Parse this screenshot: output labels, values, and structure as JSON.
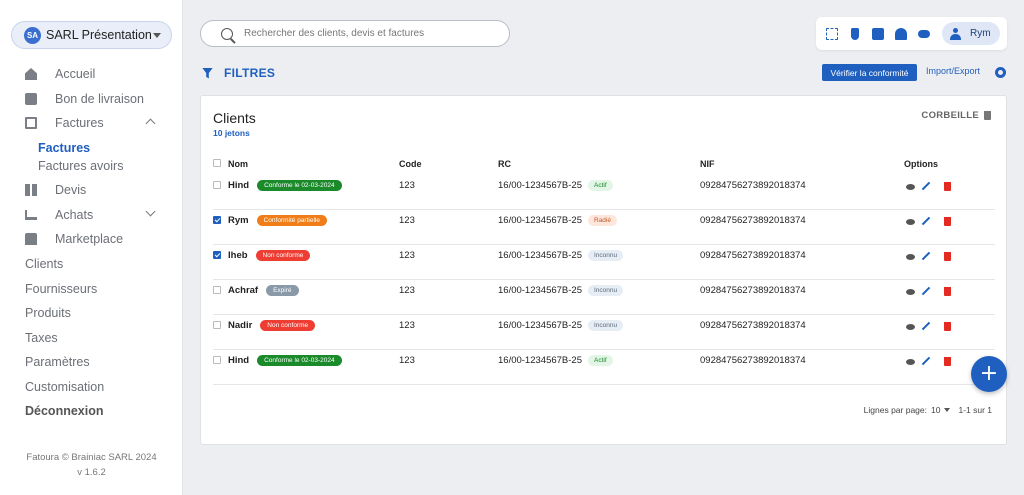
{
  "sidebar": {
    "company_initials": "SA",
    "company_name": "SARL Présentation",
    "items": [
      {
        "label": "Accueil",
        "icon": "home-icon"
      },
      {
        "label": "Bon de livraison",
        "icon": "delivery-icon"
      },
      {
        "label": "Factures",
        "icon": "invoice-icon",
        "expanded": true
      },
      {
        "label": "Devis",
        "icon": "quote-icon"
      },
      {
        "label": "Achats",
        "icon": "cart-icon",
        "expanded": false
      },
      {
        "label": "Marketplace",
        "icon": "store-icon"
      }
    ],
    "factures_sub": [
      "Factures",
      "Factures avoirs"
    ],
    "links": [
      "Clients",
      "Fournisseurs",
      "Produits",
      "Taxes",
      "Paramètres",
      "Customisation"
    ],
    "logout": "Déconnexion",
    "footer_line1": "Fatoura © Brainiac SARL 2024",
    "footer_line2": "v 1.6.2"
  },
  "search": {
    "placeholder": "Rechercher des clients, devis et factures",
    "value": ""
  },
  "topbar": {
    "icons": [
      "fullscreen-icon",
      "plug-icon",
      "calculator-icon",
      "bell-icon",
      "cloud-icon"
    ],
    "user_name": "Rym"
  },
  "toolbar": {
    "filters_label": "FILTRES",
    "verify_label": "Vérifier la conformité",
    "import_label": "Import/Export"
  },
  "card": {
    "title": "Clients",
    "count": "10 jetons",
    "trash_label": "CORBEILLE"
  },
  "table": {
    "headers": {
      "name": "Nom",
      "code": "Code",
      "rc": "RC",
      "nif": "NIF",
      "options": "Options"
    },
    "rows": [
      {
        "name": "Hind",
        "badge": "Conforme le 02-03-2024",
        "badge_type": "conf",
        "checked": false,
        "code": "123",
        "rc": "16/00-1234567B-25",
        "rc_status": "Actif",
        "rc_type": "actif",
        "nif": "092847562738920183​74"
      },
      {
        "name": "Rym",
        "badge": "Conformité partielle",
        "badge_type": "part",
        "checked": true,
        "code": "123",
        "rc": "16/00-1234567B-25",
        "rc_status": "Radié",
        "rc_type": "radie",
        "nif": "09284756273892018374"
      },
      {
        "name": "Iheb",
        "badge": "Non conforme",
        "badge_type": "non",
        "checked": true,
        "code": "123",
        "rc": "16/00-1234567B-25",
        "rc_status": "Inconnu",
        "rc_type": "inconnu",
        "nif": "09284756273892018374"
      },
      {
        "name": "Achraf",
        "badge": "Expiré",
        "badge_type": "exp",
        "checked": false,
        "code": "123",
        "rc": "16/00-1234567B-25",
        "rc_status": "Inconnu",
        "rc_type": "inconnu",
        "nif": "09284756273892018374"
      },
      {
        "name": "Nadir",
        "badge": "Non conforme",
        "badge_type": "non",
        "checked": false,
        "code": "123",
        "rc": "16/00-1234567B-25",
        "rc_status": "Inconnu",
        "rc_type": "inconnu",
        "nif": "09284756273892018374"
      },
      {
        "name": "Hind",
        "badge": "Conforme le 02-03-2024",
        "badge_type": "conf",
        "checked": false,
        "code": "123",
        "rc": "16/00-1234567B-25",
        "rc_status": "Actif",
        "rc_type": "actif",
        "nif": "09284756273892018374"
      }
    ]
  },
  "pager": {
    "label": "Lignes par page:",
    "per_page": "10",
    "range": "1-1 sur 1"
  },
  "colors": {
    "accent": "#1f5fbf",
    "danger": "#e32b22",
    "success": "#1a8a2a",
    "warning": "#f07d18"
  }
}
